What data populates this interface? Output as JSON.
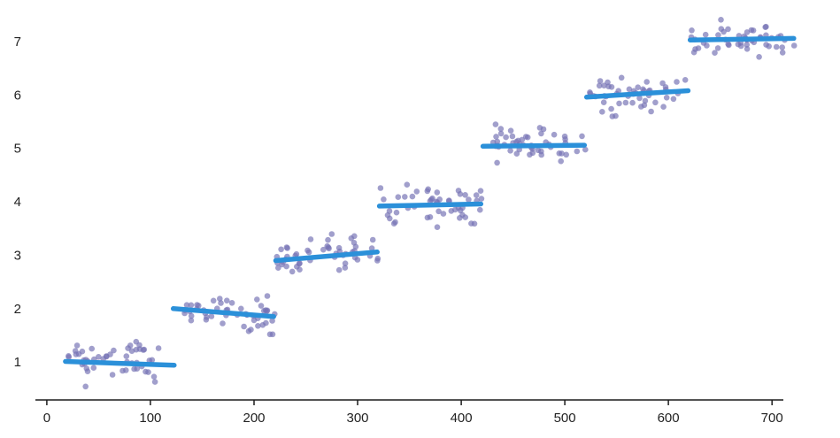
{
  "chart_data": {
    "type": "scatter",
    "title": "",
    "xlabel": "",
    "ylabel": "",
    "legend": "none",
    "grid": false,
    "x_ticks": [
      0,
      100,
      200,
      300,
      400,
      500,
      600,
      700
    ],
    "y_ticks": [
      1,
      2,
      3,
      4,
      5,
      6,
      7
    ],
    "x_domain": [
      -11,
      740
    ],
    "y_domain": [
      0.29,
      7.58
    ],
    "point_color": "#7572b4",
    "point_opacity": 0.68,
    "point_radius": 3.3,
    "line_color": "#2b90d9",
    "line_width": 5.5,
    "axis_color": "#1c1c1c",
    "label_color": "#222222",
    "tick_font_size": 15,
    "seed": 7,
    "clusters": [
      {
        "x_start": 20,
        "x_end": 122,
        "y_mean": 0.98,
        "y_spread": 0.35,
        "n": 50,
        "trend": {
          "x1": 18,
          "y1": 1.01,
          "x2": 123,
          "y2": 0.94
        }
      },
      {
        "x_start": 123,
        "x_end": 220,
        "y_mean": 1.95,
        "y_spread": 0.35,
        "n": 50,
        "trend": {
          "x1": 122,
          "y1": 2.0,
          "x2": 219,
          "y2": 1.85
        }
      },
      {
        "x_start": 222,
        "x_end": 320,
        "y_mean": 2.98,
        "y_spread": 0.35,
        "n": 50,
        "trend": {
          "x1": 221,
          "y1": 2.9,
          "x2": 319,
          "y2": 3.06
        }
      },
      {
        "x_start": 322,
        "x_end": 420,
        "y_mean": 3.94,
        "y_spread": 0.33,
        "n": 50,
        "trend": {
          "x1": 321,
          "y1": 3.92,
          "x2": 419,
          "y2": 3.96
        }
      },
      {
        "x_start": 422,
        "x_end": 520,
        "y_mean": 5.04,
        "y_spread": 0.33,
        "n": 50,
        "trend": {
          "x1": 421,
          "y1": 5.04,
          "x2": 519,
          "y2": 5.06
        }
      },
      {
        "x_start": 522,
        "x_end": 620,
        "y_mean": 6.01,
        "y_spread": 0.33,
        "n": 50,
        "trend": {
          "x1": 521,
          "y1": 5.96,
          "x2": 619,
          "y2": 6.08
        }
      },
      {
        "x_start": 622,
        "x_end": 722,
        "y_mean": 7.03,
        "y_spread": 0.3,
        "n": 50,
        "trend": {
          "x1": 621,
          "y1": 7.03,
          "x2": 721,
          "y2": 7.06
        }
      }
    ]
  }
}
